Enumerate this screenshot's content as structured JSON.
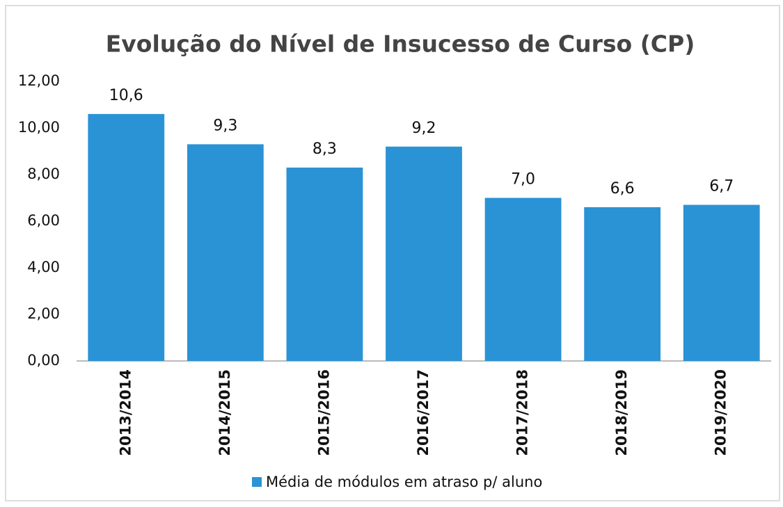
{
  "chart_data": {
    "type": "bar",
    "title": "Evolução do Nível de Insucesso de Curso (CP)",
    "categories": [
      "2013/2014",
      "2014/2015",
      "2015/2016",
      "2016/2017",
      "2017/2018",
      "2018/2019",
      "2019/2020"
    ],
    "series": [
      {
        "name": "Média de módulos em atraso p/ aluno",
        "color": "#2a93d5",
        "values": [
          10.6,
          9.3,
          8.3,
          9.2,
          7.0,
          6.6,
          6.7
        ],
        "value_labels": [
          "10,6",
          "9,3",
          "8,3",
          "9,2",
          "7,0",
          "6,6",
          "6,7"
        ]
      }
    ],
    "ylim": [
      0,
      12
    ],
    "yticks": [
      {
        "value": 0,
        "label": "0,00"
      },
      {
        "value": 2,
        "label": "2,00"
      },
      {
        "value": 4,
        "label": "4,00"
      },
      {
        "value": 6,
        "label": "6,00"
      },
      {
        "value": 8,
        "label": "8,00"
      },
      {
        "value": 10,
        "label": "10,00"
      },
      {
        "value": 12,
        "label": "12,00"
      }
    ],
    "grid": false,
    "legend": "bottom"
  }
}
